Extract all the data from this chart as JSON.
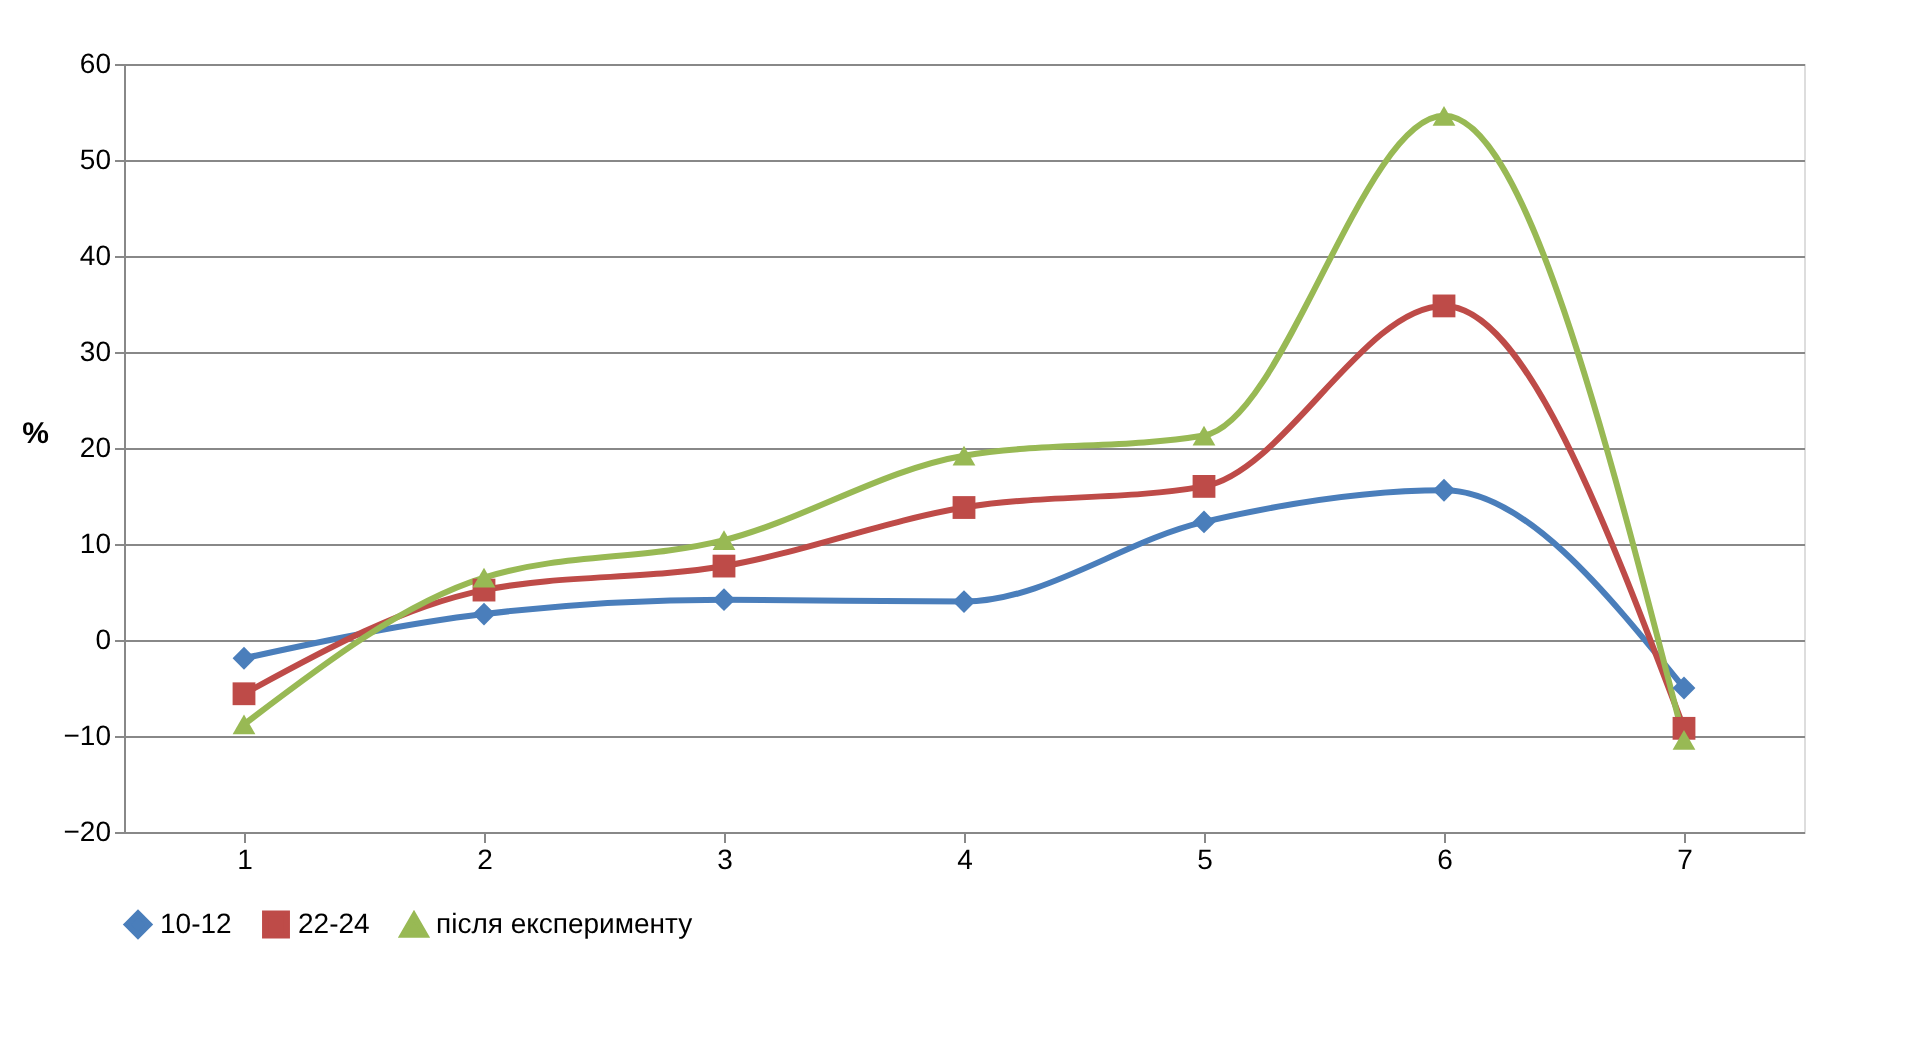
{
  "chart_data": {
    "type": "line",
    "ylabel": "%",
    "categories": [
      "1",
      "2",
      "3",
      "4",
      "5",
      "6",
      "7"
    ],
    "series": [
      {
        "name": "10-12",
        "color": "#4a7ebb",
        "marker": "diamond",
        "values": [
          -1.9,
          2.7,
          4.2,
          4.0,
          12.3,
          15.6,
          -5.0
        ]
      },
      {
        "name": "22-24",
        "color": "#be4b48",
        "marker": "square",
        "values": [
          -5.6,
          5.2,
          7.7,
          13.8,
          16.0,
          34.8,
          -9.2
        ]
      },
      {
        "name": "після експерименту",
        "color": "#98b954",
        "marker": "triangle",
        "values": [
          -8.8,
          6.5,
          10.4,
          19.2,
          21.3,
          54.6,
          -10.4
        ]
      }
    ],
    "ylim": [
      -20,
      60
    ],
    "yticks": [
      -20,
      -10,
      0,
      10,
      20,
      30,
      40,
      50,
      60
    ],
    "grid": "y",
    "legend": "bottom",
    "line_style": "solid"
  }
}
